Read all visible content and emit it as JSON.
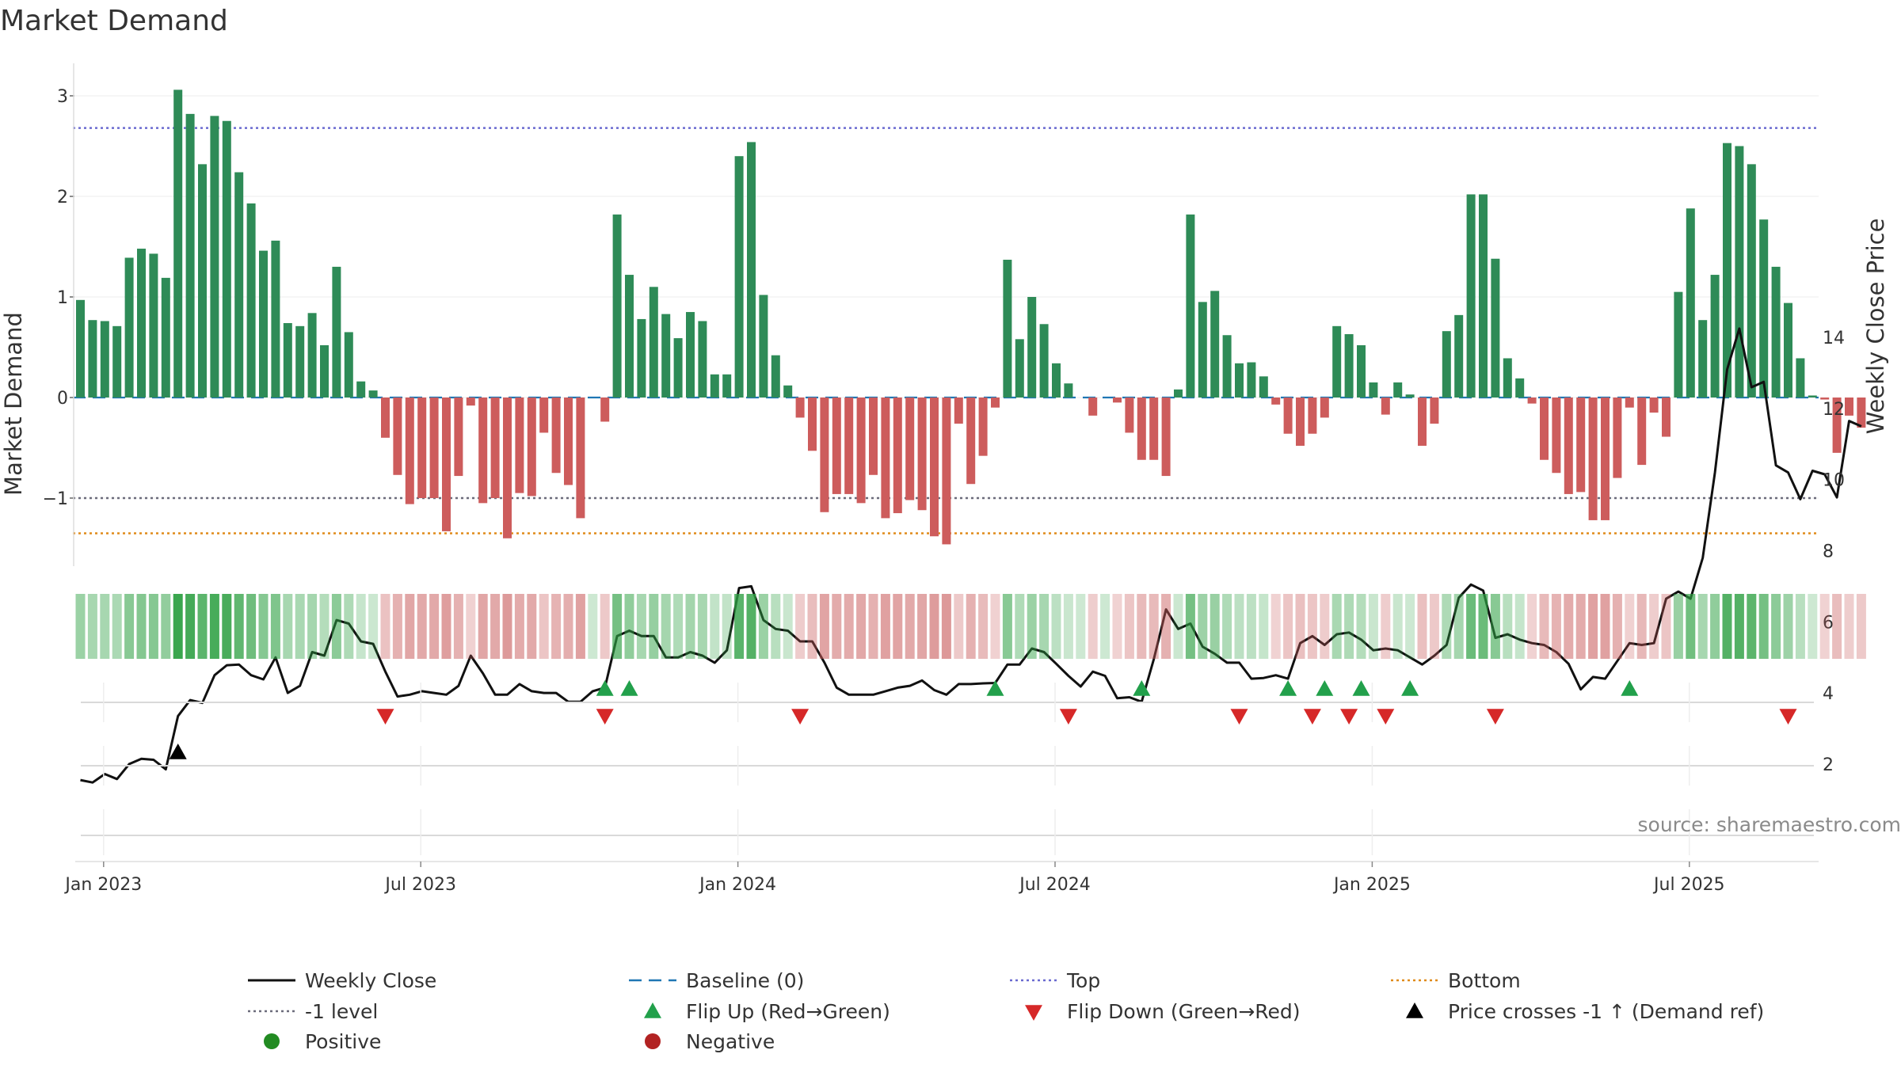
{
  "chart_data": {
    "type": "bar",
    "title": "Market Demand",
    "ylabel_left": "Market Demand",
    "ylabel_right": "Weekly Close Price",
    "source_note": "source: sharemaestro.com",
    "x_ticks": [
      "Jan 2023",
      "Jul 2023",
      "Jan 2024",
      "Jul 2024",
      "Jan 2025",
      "Jul 2025"
    ],
    "left_axis": {
      "ylim": [
        -1.7,
        3.15
      ],
      "ticks": [
        "3",
        "2",
        "1",
        "0",
        "−1"
      ]
    },
    "right_axis": {
      "ylim": [
        1.0,
        14.3
      ],
      "ticks": [
        "14",
        "12",
        "10",
        "8",
        "6",
        "4",
        "2"
      ]
    },
    "reference_lines": {
      "top": 2.68,
      "bottom": -1.35,
      "minus_one": -1.0,
      "baseline": 0
    },
    "colors": {
      "positive_bar": "#2e8b57",
      "negative_bar": "#cd5c5c",
      "price_line": "#111111",
      "baseline": "#1f77b4",
      "top_line": "#6a6ad0",
      "bottom_line": "#e08b1a",
      "minus_one_line": "#6b6b7b",
      "flip_up": "#22a04b",
      "flip_down": "#d62828",
      "price_cross": "#000000",
      "positive_dot": "#228b22",
      "negative_dot": "#b22222"
    },
    "series": [
      {
        "name": "Market Demand",
        "values": [
          0.97,
          0.77,
          0.76,
          0.71,
          1.39,
          1.48,
          1.43,
          1.19,
          3.06,
          2.82,
          2.32,
          2.8,
          2.75,
          2.24,
          1.93,
          1.46,
          1.56,
          0.74,
          0.71,
          0.84,
          0.52,
          1.3,
          0.65,
          0.16,
          0.07,
          -0.4,
          -0.77,
          -1.06,
          -1.0,
          -1.0,
          -1.33,
          -0.78,
          -0.08,
          -1.05,
          -1.0,
          -1.4,
          -0.95,
          -0.98,
          -0.35,
          -0.75,
          -0.87,
          -1.2,
          0,
          -0.24,
          1.82,
          1.22,
          0.78,
          1.1,
          0.83,
          0.59,
          0.85,
          0.76,
          0.23,
          0.23,
          2.4,
          2.54,
          1.02,
          0.42,
          0.12,
          -0.2,
          -0.53,
          -1.14,
          -0.96,
          -0.96,
          -1.05,
          -0.77,
          -1.2,
          -1.15,
          -1.02,
          -1.12,
          -1.38,
          -1.46,
          -0.26,
          -0.86,
          -0.58,
          -0.1,
          1.37,
          0.58,
          1.0,
          0.73,
          0.34,
          0.14,
          0,
          -0.18,
          0,
          -0.05,
          -0.35,
          -0.62,
          -0.62,
          -0.78,
          0.08,
          1.82,
          0.95,
          1.06,
          0.62,
          0.34,
          0.35,
          0.21,
          -0.07,
          -0.36,
          -0.48,
          -0.36,
          -0.2,
          0.71,
          0.63,
          0.52,
          0.15,
          -0.17,
          0.15,
          0.03,
          -0.48,
          -0.26,
          0.66,
          0.82,
          2.02,
          2.02,
          1.38,
          0.39,
          0.19,
          -0.06,
          -0.62,
          -0.75,
          -0.96,
          -0.94,
          -1.22,
          -1.22,
          -0.8,
          -0.1,
          -0.67,
          -0.15,
          -0.39,
          1.05,
          1.88,
          0.77,
          1.22,
          2.53,
          2.5,
          2.32,
          1.77,
          1.3,
          0.94,
          0.39,
          0.02,
          -0.02,
          -0.55,
          -0.18,
          -0.3
        ]
      },
      {
        "name": "Weekly Close",
        "values": [
          1.55,
          1.48,
          1.72,
          1.58,
          2.0,
          2.15,
          2.12,
          1.85,
          3.35,
          3.8,
          3.72,
          4.5,
          4.78,
          4.8,
          4.5,
          4.38,
          5.0,
          4.0,
          4.2,
          5.15,
          5.05,
          6.05,
          5.95,
          5.45,
          5.38,
          4.6,
          3.9,
          3.95,
          4.05,
          4.0,
          3.95,
          4.2,
          5.05,
          4.55,
          3.95,
          3.95,
          4.25,
          4.05,
          4.0,
          4.0,
          3.75,
          3.75,
          4.05,
          4.15,
          5.6,
          5.75,
          5.6,
          5.6,
          5.0,
          5.0,
          5.15,
          5.05,
          4.85,
          5.2,
          6.95,
          7.0,
          6.05,
          5.8,
          5.75,
          5.45,
          5.45,
          4.85,
          4.15,
          3.95,
          3.95,
          3.95,
          4.05,
          4.15,
          4.2,
          4.35,
          4.08,
          3.95,
          4.25,
          4.25,
          4.27,
          4.28,
          4.8,
          4.8,
          5.25,
          5.15,
          4.82,
          4.48,
          4.18,
          4.6,
          4.48,
          3.85,
          3.88,
          3.75,
          4.95,
          6.35,
          5.8,
          5.95,
          5.3,
          5.1,
          4.85,
          4.85,
          4.4,
          4.42,
          4.5,
          4.4,
          5.4,
          5.6,
          5.35,
          5.65,
          5.7,
          5.5,
          5.2,
          5.25,
          5.2,
          5.0,
          4.8,
          5.05,
          5.35,
          6.68,
          7.05,
          6.88,
          5.55,
          5.65,
          5.5,
          5.4,
          5.35,
          5.15,
          4.82,
          4.1,
          4.45,
          4.4,
          4.9,
          5.4,
          5.35,
          5.4,
          6.65,
          6.85,
          6.65,
          7.8,
          10.2,
          13.1,
          14.25,
          12.6,
          12.75,
          10.4,
          10.2,
          9.45,
          10.25,
          10.15,
          9.5,
          11.65,
          11.5
        ]
      }
    ],
    "heat_strip": [
      0.35,
      0.27,
      0.27,
      0.25,
      0.46,
      0.49,
      0.47,
      0.4,
      0.92,
      0.86,
      0.72,
      0.85,
      0.84,
      0.7,
      0.61,
      0.48,
      0.51,
      0.27,
      0.26,
      0.29,
      0.2,
      0.44,
      0.24,
      0.09,
      0.06,
      -0.2,
      -0.33,
      -0.42,
      -0.4,
      -0.4,
      -0.5,
      -0.33,
      -0.08,
      -0.42,
      -0.4,
      -0.52,
      -0.39,
      -0.4,
      -0.18,
      -0.32,
      -0.36,
      -0.46,
      0.05,
      -0.14,
      0.58,
      0.41,
      0.28,
      0.38,
      0.29,
      0.22,
      0.3,
      0.27,
      0.11,
      0.11,
      0.74,
      0.78,
      0.35,
      0.17,
      0.08,
      -0.12,
      -0.24,
      -0.44,
      -0.39,
      -0.39,
      -0.41,
      -0.33,
      -0.46,
      -0.44,
      -0.4,
      -0.43,
      -0.51,
      -0.53,
      -0.14,
      -0.35,
      -0.25,
      -0.08,
      0.46,
      0.22,
      0.35,
      0.27,
      0.15,
      0.08,
      0.05,
      -0.11,
      0.05,
      -0.06,
      -0.17,
      -0.27,
      -0.27,
      -0.33,
      0.06,
      0.58,
      0.34,
      0.36,
      0.23,
      0.15,
      0.15,
      0.1,
      -0.07,
      -0.17,
      -0.21,
      -0.17,
      -0.12,
      0.26,
      0.24,
      0.2,
      0.08,
      -0.11,
      0.08,
      0.05,
      -0.21,
      -0.14,
      0.24,
      0.29,
      0.64,
      0.64,
      0.46,
      0.17,
      0.1,
      -0.07,
      -0.27,
      -0.32,
      -0.39,
      -0.39,
      -0.47,
      -0.47,
      -0.33,
      -0.08,
      -0.28,
      -0.1,
      -0.18,
      0.36,
      0.6,
      0.27,
      0.41,
      0.78,
      0.77,
      0.72,
      0.58,
      0.44,
      0.34,
      0.17,
      0.05,
      -0.06,
      -0.24,
      -0.11,
      -0.15
    ],
    "flip_up_weeks": [
      43,
      45,
      75,
      87,
      99,
      102,
      105,
      109,
      127
    ],
    "flip_down_weeks": [
      25,
      43,
      59,
      81,
      95,
      101,
      104,
      107,
      116,
      140
    ],
    "price_cross_weeks": [
      8
    ],
    "weeks_first_label_index": 2,
    "weeks_per_six_months": 26,
    "legend": [
      {
        "key": "weekly-close",
        "label": "Weekly Close",
        "style": "solid-line"
      },
      {
        "key": "baseline",
        "label": "Baseline (0)",
        "style": "dash-line"
      },
      {
        "key": "top",
        "label": "Top",
        "style": "dot-line"
      },
      {
        "key": "bottom",
        "label": "Bottom",
        "style": "dot-line"
      },
      {
        "key": "minus-one",
        "label": "-1 level",
        "style": "dot-line"
      },
      {
        "key": "flip-up",
        "label": "Flip Up (Red→Green)",
        "style": "up-triangle"
      },
      {
        "key": "flip-down",
        "label": "Flip Down (Green→Red)",
        "style": "down-triangle"
      },
      {
        "key": "price-cross",
        "label": "Price crosses -1 ↑ (Demand ref)",
        "style": "up-triangle"
      },
      {
        "key": "positive",
        "label": "Positive",
        "style": "dot"
      },
      {
        "key": "negative",
        "label": "Negative",
        "style": "dot"
      }
    ]
  }
}
